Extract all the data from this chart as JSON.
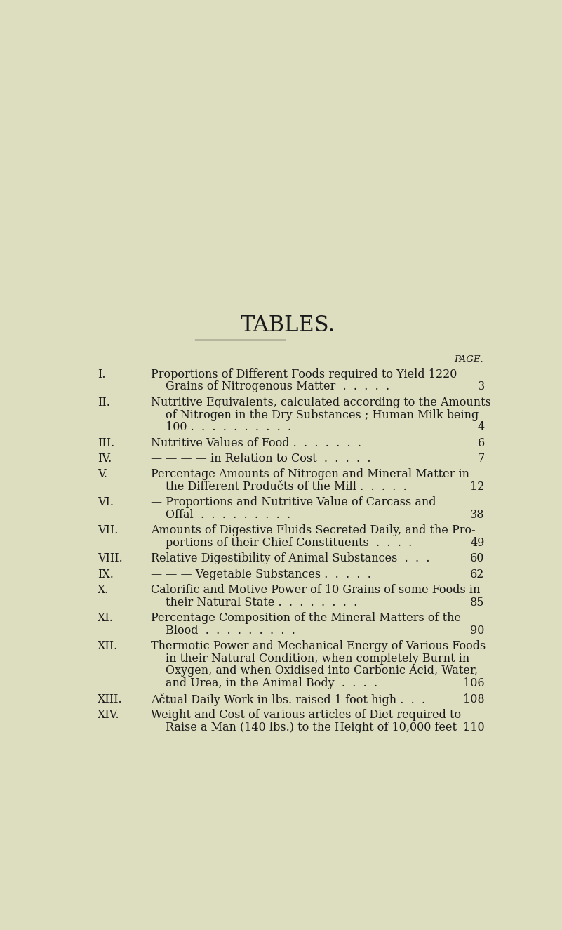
{
  "bg_color": "#dede be",
  "title": "TABLES.",
  "title_fontsize": 20,
  "page_label": "PAGE.",
  "entries": [
    {
      "roman": "I.",
      "lines": [
        "Proportions of Different Foods required to Yield 1220",
        "Grains of Nitrogenous Matter  .  .  .  .  ."
      ],
      "page": "3",
      "page_line": 1
    },
    {
      "roman": "II.",
      "lines": [
        "Nutritive Equivalents, calculated according to the Amounts",
        "of Nitrogen in the Dry Substances ; Human Milk being",
        "100 .  .  .  .  .  .  .  .  .  ."
      ],
      "page": "4",
      "page_line": 2
    },
    {
      "roman": "III.",
      "lines": [
        "Nutritive Values of Food .  .  .  .  .  .  ."
      ],
      "page": "6",
      "page_line": 0
    },
    {
      "roman": "IV.",
      "lines": [
        "— — — — in Relation to Cost  .  .  .  .  ."
      ],
      "page": "7",
      "page_line": 0
    },
    {
      "roman": "V.",
      "lines": [
        "Percentage Amounts of Nitrogen and Mineral Matter in",
        "the Different Produčts of the Mill .  .  .  .  ."
      ],
      "page": "12",
      "page_line": 1
    },
    {
      "roman": "VI.",
      "lines": [
        "— Proportions and Nutritive Value of Carcass and",
        "Offal  .  .  .  .  .  .  .  .  ."
      ],
      "page": "38",
      "page_line": 1
    },
    {
      "roman": "VII.",
      "lines": [
        "Amounts of Digestive Fluids Secreted Daily, and the Pro-",
        "portions of their Chief Constituents  .  .  .  ."
      ],
      "page": "49",
      "page_line": 1
    },
    {
      "roman": "VIII.",
      "lines": [
        "Relative Digestibility of Animal Substances  .  .  ."
      ],
      "page": "60",
      "page_line": 0
    },
    {
      "roman": "IX.",
      "lines": [
        "— — — Vegetable Substances .  .  .  .  ."
      ],
      "page": "62",
      "page_line": 0
    },
    {
      "roman": "X.",
      "lines": [
        "Calorific and Motive Power of 10 Grains of some Foods in",
        "their Natural State .  .  .  .  .  .  .  ."
      ],
      "page": "85",
      "page_line": 1
    },
    {
      "roman": "XI.",
      "lines": [
        "Percentage Composition of the Mineral Matters of the",
        "Blood  .  .  .  .  .  .  .  .  ."
      ],
      "page": "90",
      "page_line": 1
    },
    {
      "roman": "XII.",
      "lines": [
        "Thermotic Power and Mechanical Energy of Various Foods",
        "in their Natural Condition, when completely Burnt in",
        "Oxygen, and when Oxidised into Carbonic Acid, Water,",
        "and Urea, in the Animal Body  .  .  .  ."
      ],
      "page": "106",
      "page_line": 3
    },
    {
      "roman": "XIII.",
      "lines": [
        "Ačtual Daily Work in lbs. raised 1 foot high .  .  ."
      ],
      "page": "108",
      "page_line": 0
    },
    {
      "roman": "XIV.",
      "lines": [
        "Weight and Cost of various articles of Diet required to",
        "Raise a Man (140 lbs.) to the Height of 10,000 feet  ."
      ],
      "page": "110",
      "page_line": 1
    }
  ],
  "text_color": "#1a1a1a",
  "font_family": "serif"
}
